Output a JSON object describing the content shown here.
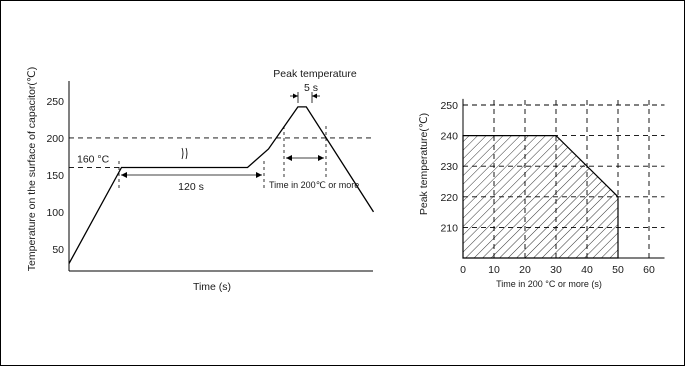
{
  "chart_data": [
    {
      "type": "line",
      "xlabel": "Time (s)",
      "ylabel": "Temperature on the surface of capacitor(℃)",
      "y_ticks": [
        50,
        100,
        150,
        200,
        250
      ],
      "ylim": [
        20,
        265
      ],
      "x_ticks": [],
      "profile": [
        {
          "x": 0,
          "y": 30
        },
        {
          "x": 50,
          "y": 160
        },
        {
          "x": 170,
          "y": 160
        },
        {
          "x": 190,
          "y": 185
        },
        {
          "x": 218,
          "y": 242
        },
        {
          "x": 226,
          "y": 242
        },
        {
          "x": 290,
          "y": 100
        }
      ],
      "reference_lines": [
        {
          "y": 160,
          "label": "160 °C"
        },
        {
          "y": 200
        }
      ],
      "annotations": {
        "peak_label": "Peak temperature",
        "peak_duration": "5 s",
        "preheat_duration": "120 s",
        "time_above_200": "Time in 200℃ or more"
      }
    },
    {
      "type": "area",
      "xlabel": "Time in 200 °C or more  (s)",
      "ylabel": "Peak temperature(℃)",
      "xlim": [
        0,
        65
      ],
      "ylim": [
        200,
        252
      ],
      "x_ticks": [
        0,
        10,
        20,
        30,
        40,
        50,
        60
      ],
      "y_ticks": [
        210,
        220,
        230,
        240,
        250
      ],
      "grid": true,
      "hatched": true,
      "region": [
        {
          "x": 0,
          "y": 200
        },
        {
          "x": 0,
          "y": 240
        },
        {
          "x": 30,
          "y": 240
        },
        {
          "x": 50,
          "y": 220
        },
        {
          "x": 50,
          "y": 200
        }
      ]
    }
  ]
}
